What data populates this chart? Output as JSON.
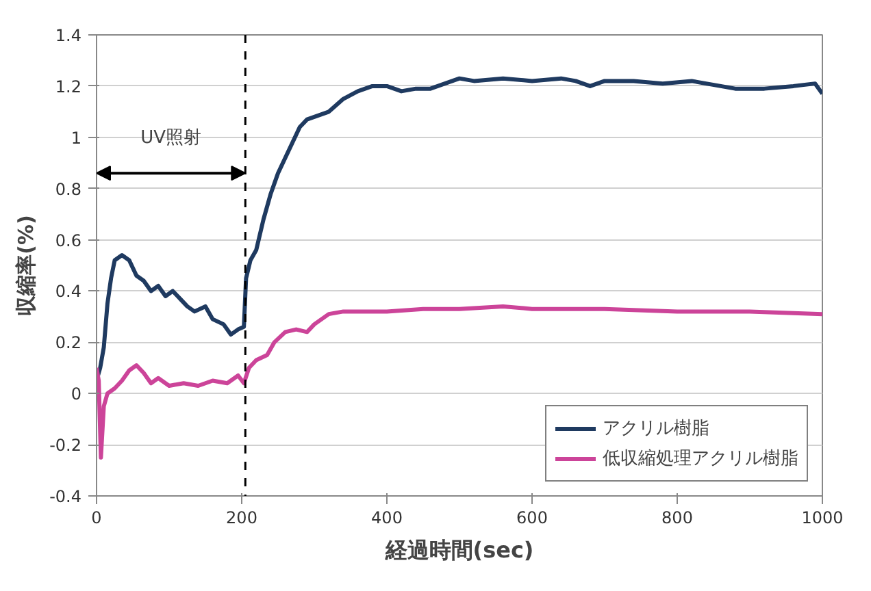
{
  "chart_data": {
    "type": "line",
    "xlabel": "経過時間(sec)",
    "ylabel": "収縮率(%)",
    "xlim": [
      0,
      1000
    ],
    "xticks": [
      0,
      200,
      400,
      600,
      800,
      1000
    ],
    "ylim": [
      -0.4,
      1.4
    ],
    "yticks": [
      -0.4,
      -0.2,
      0,
      0.2,
      0.4,
      0.6,
      0.8,
      1,
      1.2,
      1.4
    ],
    "grid": "y",
    "legend": "bottom right",
    "marker": "none",
    "line_style": "solid",
    "series": [
      {
        "name": "アクリル樹脂",
        "color": "#1f3a60",
        "x": [
          0,
          5,
          10,
          15,
          20,
          25,
          35,
          45,
          55,
          65,
          75,
          85,
          95,
          105,
          115,
          125,
          135,
          150,
          160,
          175,
          185,
          195,
          203,
          206,
          212,
          220,
          230,
          240,
          250,
          260,
          270,
          280,
          290,
          300,
          320,
          340,
          360,
          380,
          400,
          420,
          440,
          460,
          480,
          500,
          520,
          560,
          600,
          640,
          660,
          680,
          700,
          740,
          780,
          820,
          860,
          880,
          920,
          960,
          990,
          1000
        ],
        "values": [
          0.05,
          0.1,
          0.18,
          0.35,
          0.45,
          0.52,
          0.54,
          0.52,
          0.46,
          0.44,
          0.4,
          0.42,
          0.38,
          0.4,
          0.37,
          0.34,
          0.32,
          0.34,
          0.29,
          0.27,
          0.23,
          0.25,
          0.26,
          0.45,
          0.52,
          0.56,
          0.68,
          0.78,
          0.86,
          0.92,
          0.98,
          1.04,
          1.07,
          1.08,
          1.1,
          1.15,
          1.18,
          1.2,
          1.2,
          1.18,
          1.19,
          1.19,
          1.21,
          1.23,
          1.22,
          1.23,
          1.22,
          1.23,
          1.22,
          1.2,
          1.22,
          1.22,
          1.21,
          1.22,
          1.2,
          1.19,
          1.19,
          1.2,
          1.21,
          1.17
        ]
      },
      {
        "name": "低収縮処理アクリル樹脂",
        "color": "#cc4499",
        "x": [
          0,
          3,
          6,
          10,
          15,
          25,
          35,
          45,
          55,
          65,
          75,
          85,
          100,
          120,
          140,
          160,
          180,
          195,
          203,
          210,
          220,
          235,
          245,
          260,
          275,
          290,
          300,
          320,
          340,
          400,
          450,
          500,
          560,
          600,
          700,
          800,
          860,
          900,
          1000
        ],
        "values": [
          0.1,
          0.05,
          -0.25,
          -0.05,
          0.0,
          0.02,
          0.05,
          0.09,
          0.11,
          0.08,
          0.04,
          0.06,
          0.03,
          0.04,
          0.03,
          0.05,
          0.04,
          0.07,
          0.04,
          0.1,
          0.13,
          0.15,
          0.2,
          0.24,
          0.25,
          0.24,
          0.27,
          0.31,
          0.32,
          0.32,
          0.33,
          0.33,
          0.34,
          0.33,
          0.33,
          0.32,
          0.32,
          0.32,
          0.31
        ]
      }
    ],
    "ref_lines": [
      {
        "axis": "x",
        "value": 205,
        "line_style": "dashed",
        "color": "#000000"
      }
    ],
    "annotations": [
      "UV照射"
    ]
  }
}
